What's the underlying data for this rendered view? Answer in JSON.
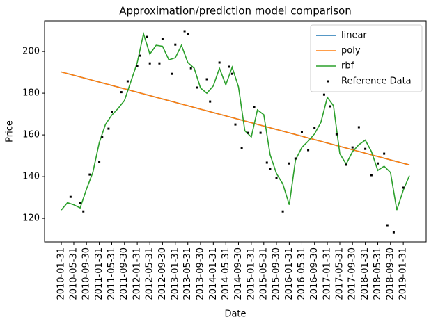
{
  "chart_data": {
    "type": "line",
    "title": "Approximation/prediction model comparison",
    "xlabel": "Date",
    "ylabel": "Price",
    "xlim": [
      "2009-08-23",
      "2019-09-08"
    ],
    "xticks": [
      "2010-01-31",
      "2010-05-31",
      "2010-09-30",
      "2011-01-31",
      "2011-05-31",
      "2011-09-30",
      "2012-01-31",
      "2012-05-31",
      "2012-09-30",
      "2013-01-31",
      "2013-05-31",
      "2013-09-30",
      "2014-01-31",
      "2014-05-31",
      "2014-09-30",
      "2015-01-31",
      "2015-05-31",
      "2015-09-30",
      "2016-01-31",
      "2016-05-31",
      "2016-09-30",
      "2017-01-31",
      "2017-05-31",
      "2017-09-30",
      "2018-01-31",
      "2018-05-31",
      "2018-09-30",
      "2019-01-31"
    ],
    "ylim": [
      108.7,
      214.7
    ],
    "yticks": [
      120,
      140,
      160,
      180,
      200
    ],
    "legend": "upper right",
    "series": [
      {
        "name": "linear",
        "color": "#1f77b4",
        "style": "line",
        "x": [
          "2010-01-31",
          "2019-03-31"
        ],
        "values": [
          190.2,
          145.6
        ]
      },
      {
        "name": "poly",
        "color": "#ff7f0e",
        "style": "line",
        "x": [
          "2010-01-31",
          "2019-03-31"
        ],
        "values": [
          190.2,
          145.6
        ]
      },
      {
        "name": "rbf",
        "color": "#2ca02c",
        "style": "line",
        "x": [
          "2010-01-31",
          "2010-03-31",
          "2010-05-31",
          "2010-07-31",
          "2010-09-30",
          "2010-11-30",
          "2011-01-31",
          "2011-03-31",
          "2011-05-31",
          "2011-07-31",
          "2011-09-30",
          "2011-11-30",
          "2012-01-31",
          "2012-03-31",
          "2012-05-31",
          "2012-07-31",
          "2012-09-30",
          "2012-11-30",
          "2013-01-31",
          "2013-03-31",
          "2013-05-31",
          "2013-07-31",
          "2013-09-30",
          "2013-11-30",
          "2014-01-31",
          "2014-03-31",
          "2014-05-31",
          "2014-07-31",
          "2014-09-30",
          "2014-11-30",
          "2015-01-31",
          "2015-03-31",
          "2015-05-31",
          "2015-07-31",
          "2015-09-30",
          "2015-11-30",
          "2016-01-31",
          "2016-03-31",
          "2016-05-31",
          "2016-07-31",
          "2016-09-30",
          "2016-11-30",
          "2017-01-31",
          "2017-03-31",
          "2017-05-31",
          "2017-07-31",
          "2017-09-30",
          "2017-11-30",
          "2018-01-31",
          "2018-03-31",
          "2018-05-31",
          "2018-07-31",
          "2018-09-30",
          "2018-11-30",
          "2019-01-31",
          "2019-03-31"
        ],
        "values": [
          124,
          127.5,
          126.5,
          125,
          134,
          142,
          156.3,
          165,
          169.5,
          172.7,
          176.5,
          185.5,
          194.7,
          208.5,
          198.8,
          203,
          202.5,
          196,
          197,
          203,
          194.7,
          192,
          182.5,
          180,
          183.5,
          192,
          184,
          192.5,
          183,
          162,
          159,
          172,
          169.7,
          150.5,
          141.5,
          136.5,
          126.5,
          148,
          154,
          157,
          160.5,
          166,
          178,
          174,
          151,
          146,
          152,
          155.3,
          157.5,
          152,
          143,
          145,
          142,
          124,
          133.5,
          140.5
        ]
      },
      {
        "name": "Reference Data",
        "color": "#000000",
        "style": "points",
        "x": [
          "2010-04-30",
          "2010-07-31",
          "2010-08-31",
          "2010-10-31",
          "2011-01-31",
          "2011-02-28",
          "2011-04-30",
          "2011-05-31",
          "2011-08-31",
          "2011-10-31",
          "2012-01-31",
          "2012-02-29",
          "2012-04-30",
          "2012-05-31",
          "2012-08-31",
          "2012-09-30",
          "2012-12-31",
          "2013-01-31",
          "2013-04-30",
          "2013-05-31",
          "2013-06-30",
          "2013-08-31",
          "2013-11-30",
          "2013-12-31",
          "2014-03-31",
          "2014-06-30",
          "2014-07-31",
          "2014-08-31",
          "2014-10-31",
          "2014-12-31",
          "2015-02-28",
          "2015-04-30",
          "2015-06-30",
          "2015-07-31",
          "2015-09-30",
          "2015-11-30",
          "2016-01-31",
          "2016-03-31",
          "2016-05-31",
          "2016-07-31",
          "2016-09-30",
          "2016-12-31",
          "2017-02-28",
          "2017-04-30",
          "2017-07-31",
          "2017-09-30",
          "2017-11-30",
          "2018-01-31",
          "2018-03-31",
          "2018-05-31",
          "2018-07-31",
          "2018-08-31",
          "2018-10-31",
          "2019-01-31"
        ],
        "values": [
          130.3,
          127.3,
          123.3,
          141,
          147,
          159,
          163,
          171,
          180.5,
          185.7,
          193,
          198,
          207,
          194.3,
          194.3,
          206,
          189.3,
          203.3,
          209.7,
          208.3,
          192,
          182.7,
          186.7,
          176,
          194.7,
          192.7,
          189.3,
          165,
          153.7,
          161,
          173.3,
          161,
          146.7,
          143.7,
          139.3,
          123.3,
          146.3,
          148.7,
          161.3,
          152.7,
          163.3,
          179.3,
          173.7,
          160.3,
          145.7,
          154,
          163.7,
          153.3,
          140.7,
          146.3,
          151,
          116.7,
          113.3,
          134.7
        ]
      }
    ]
  }
}
